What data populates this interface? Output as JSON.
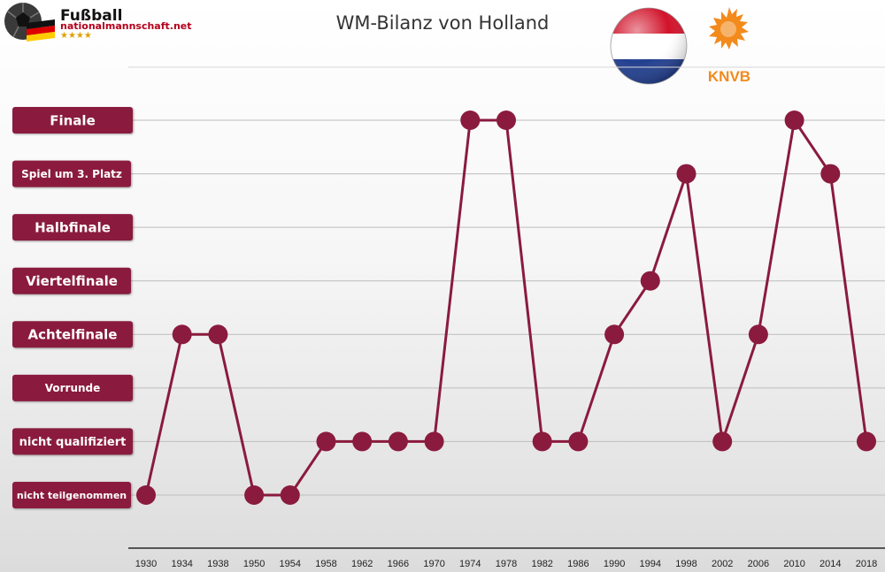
{
  "logo": {
    "line1": "Fußball",
    "line2": "nationalmannschaft.net",
    "stars": "★★★★"
  },
  "badge": {
    "text": "KNVB"
  },
  "chart_data": {
    "type": "line",
    "title": "WM-Bilanz von Holland",
    "categories": [
      "1930",
      "1934",
      "1938",
      "1950",
      "1954",
      "1958",
      "1962",
      "1966",
      "1970",
      "1974",
      "1978",
      "1982",
      "1986",
      "1990",
      "1994",
      "1998",
      "2002",
      "2006",
      "2010",
      "2014",
      "2018"
    ],
    "levels": [
      "nicht teilgenommen",
      "nicht qualifiziert",
      "Vorrunde",
      "Achtelfinale",
      "Viertelfinale",
      "Halbfinale",
      "Spiel um 3. Platz",
      "Finale"
    ],
    "values": [
      0,
      3,
      3,
      0,
      0,
      1,
      1,
      1,
      1,
      7,
      7,
      1,
      1,
      3,
      4,
      6,
      1,
      3,
      7,
      6,
      1
    ],
    "grid": true,
    "colors": {
      "series": "#8a1b3e",
      "label_bg": "#8a1b3e"
    }
  }
}
